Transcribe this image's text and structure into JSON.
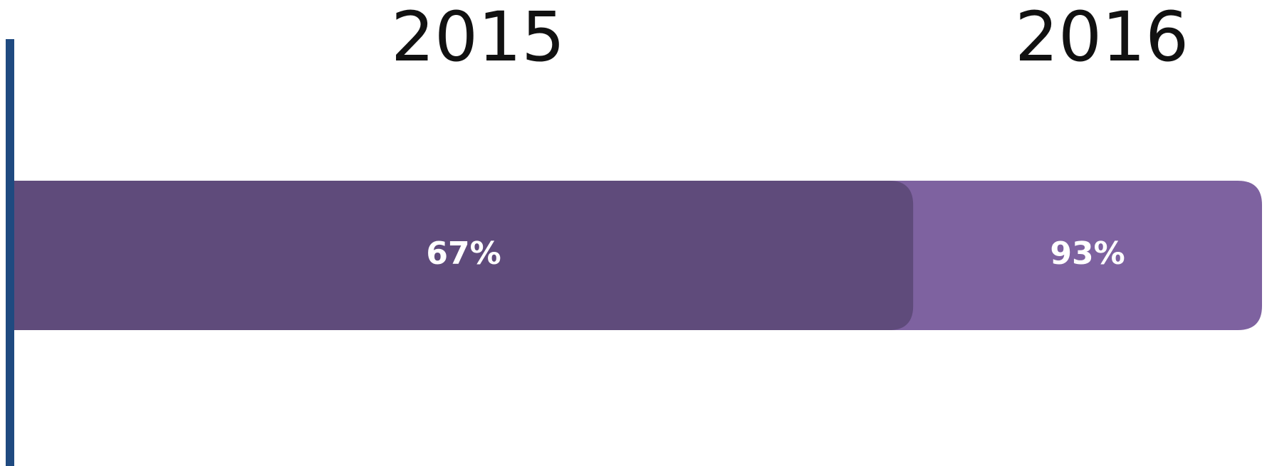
{
  "chart_data": {
    "type": "bar",
    "orientation": "horizontal",
    "overlap": true,
    "categories": [
      "2015",
      "2016"
    ],
    "values": [
      67,
      93
    ],
    "value_labels": [
      "67%",
      "93%"
    ],
    "colors": [
      "#5f4b7b",
      "#7e62a0"
    ],
    "xlim": [
      0,
      100
    ]
  }
}
